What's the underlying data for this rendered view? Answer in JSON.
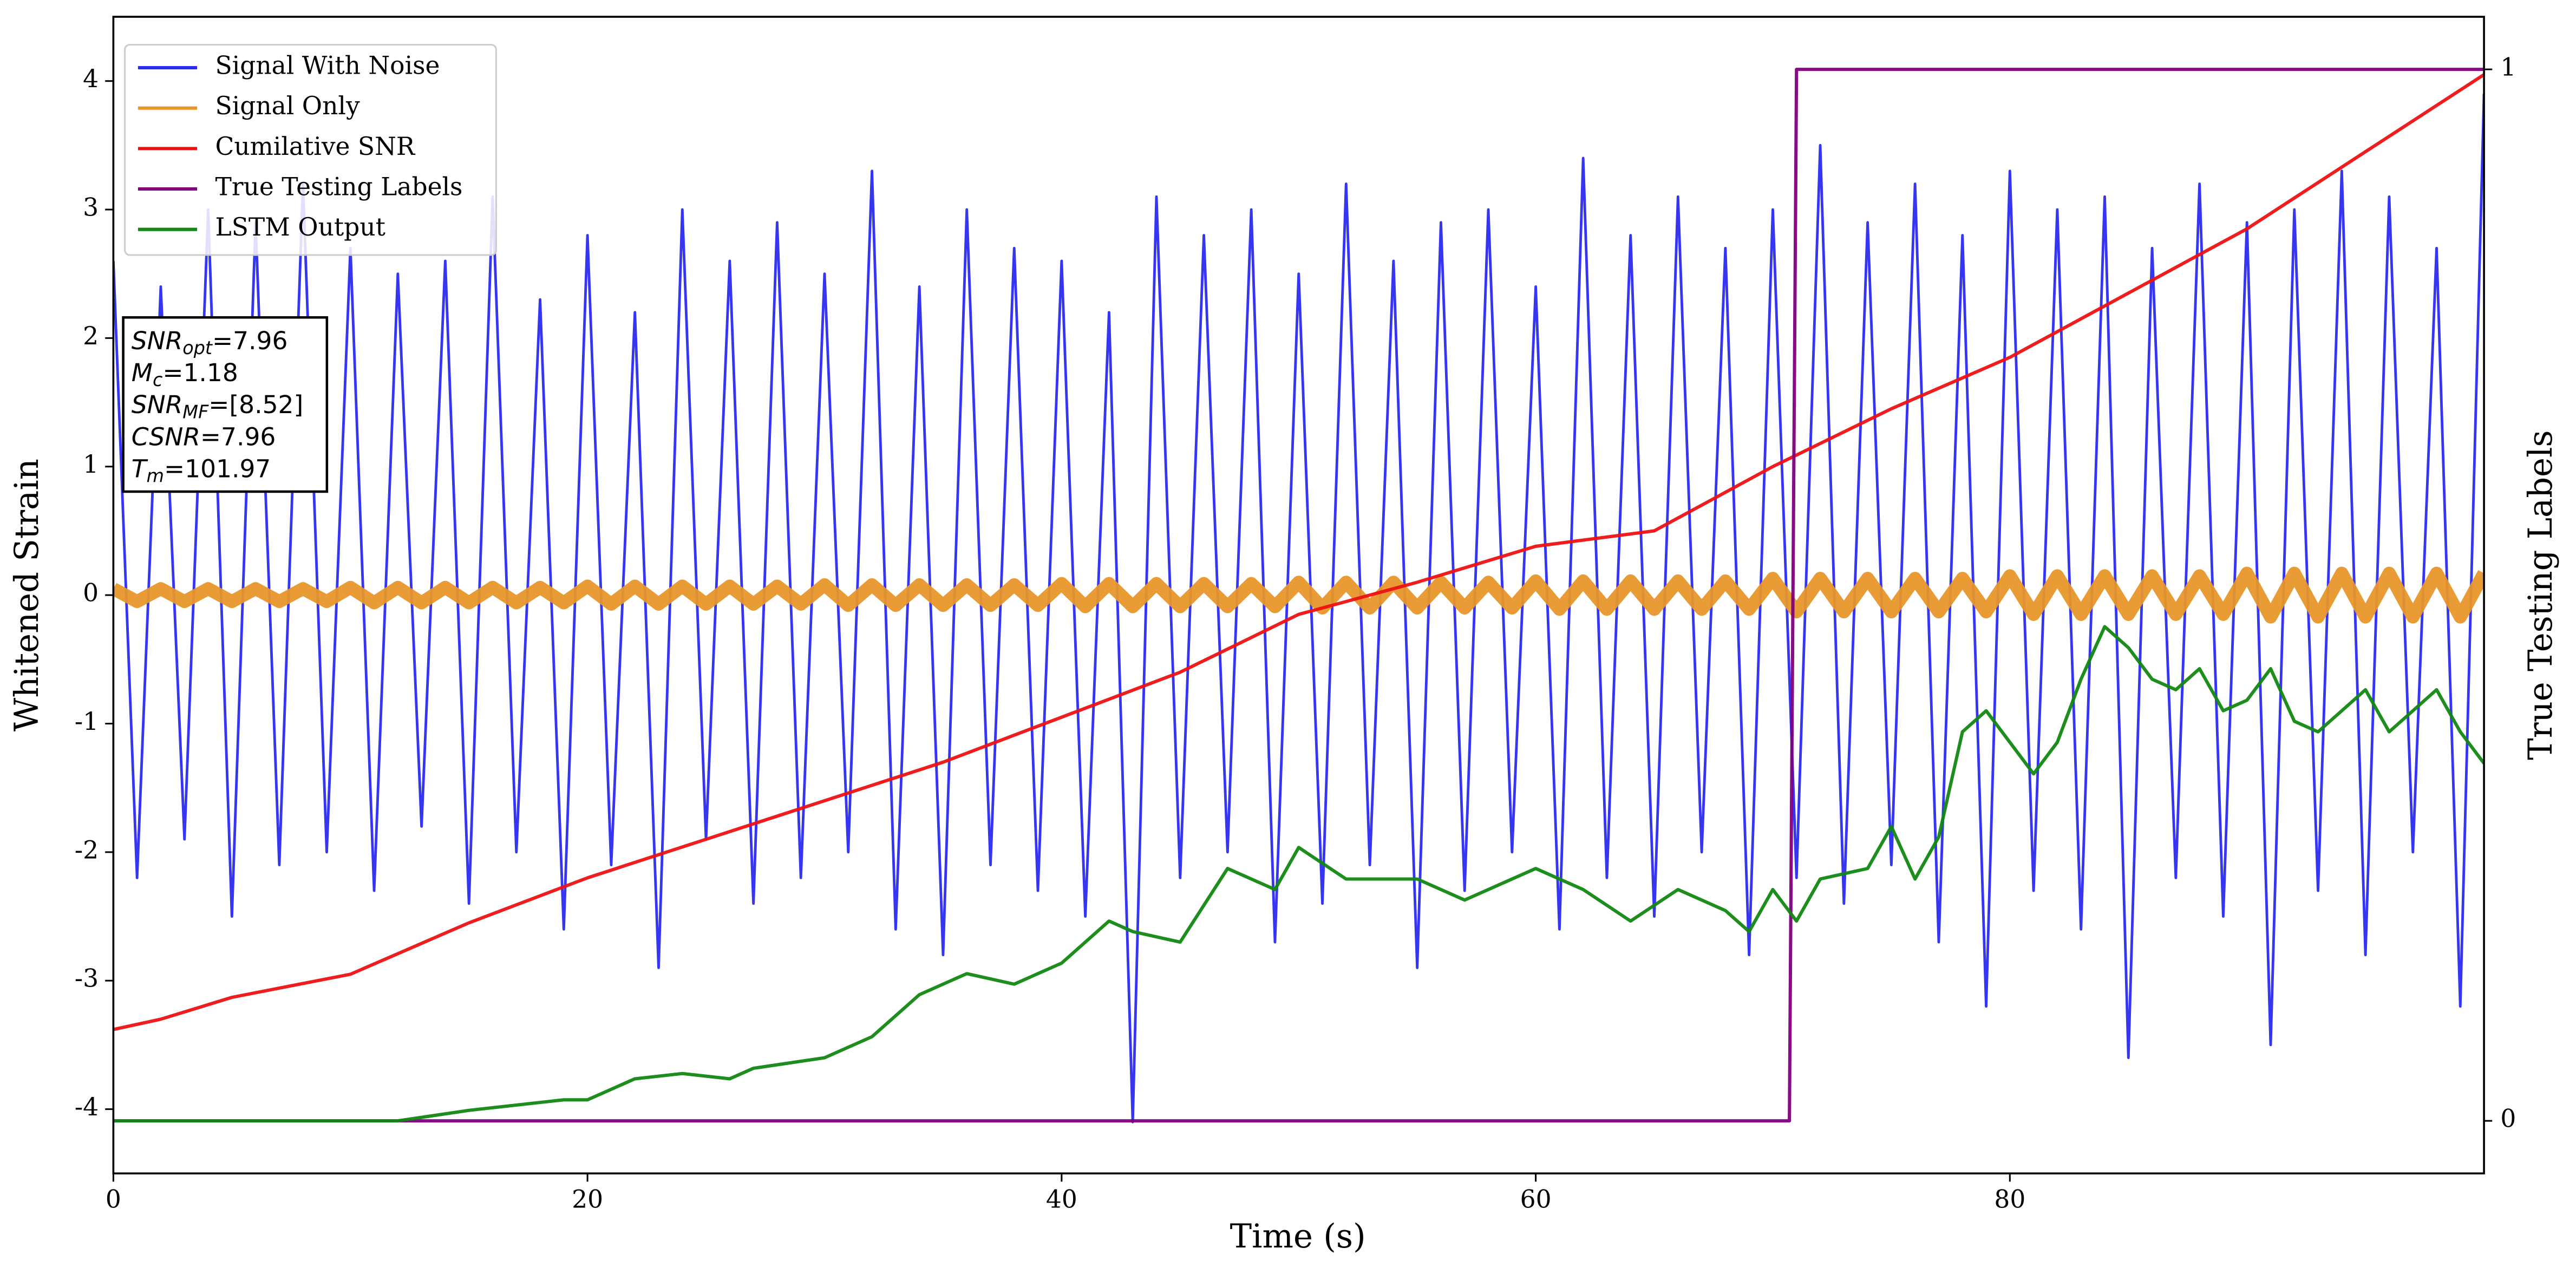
{
  "chart_data": {
    "type": "line",
    "xlabel": "Time (s)",
    "ylabel": "Whitened Strain",
    "y2label": "True Testing Labels",
    "xlim": [
      0,
      100
    ],
    "xticks": [
      0,
      20,
      40,
      60,
      80
    ],
    "ylim": [
      -4.5,
      4.5
    ],
    "yticks": [
      -4,
      -3,
      -2,
      -1,
      0,
      1,
      2,
      3,
      4
    ],
    "y2lim": [
      -0.05,
      1.05
    ],
    "y2ticks": [
      0,
      1
    ],
    "legend": "upper left",
    "series": [
      {
        "name": "Signal With Noise",
        "color": "#2b2bf0",
        "width": 1.6,
        "x": [
          0,
          1,
          2,
          3,
          4,
          5,
          6,
          7,
          8,
          9,
          10,
          11,
          12,
          13,
          14,
          15,
          16,
          17,
          18,
          19,
          20,
          21,
          22,
          23,
          24,
          25,
          26,
          27,
          28,
          29,
          30,
          31,
          32,
          33,
          34,
          35,
          36,
          37,
          38,
          39,
          40,
          41,
          42,
          43,
          44,
          45,
          46,
          47,
          48,
          49,
          50,
          51,
          52,
          53,
          54,
          55,
          56,
          57,
          58,
          59,
          60,
          61,
          62,
          63,
          64,
          65,
          66,
          67,
          68,
          69,
          70,
          71,
          72,
          73,
          74,
          75,
          76,
          77,
          78,
          79,
          80,
          81,
          82,
          83,
          84,
          85,
          86,
          87,
          88,
          89,
          90,
          91,
          92,
          93,
          94,
          95,
          96,
          97,
          98,
          99,
          100
        ],
        "values": [
          2.6,
          -2.2,
          2.4,
          -1.9,
          3.0,
          -2.5,
          2.9,
          -2.1,
          3.2,
          -2.0,
          2.7,
          -2.3,
          2.5,
          -1.8,
          2.6,
          -2.4,
          3.1,
          -2.0,
          2.3,
          -2.6,
          2.8,
          -2.1,
          2.2,
          -2.9,
          3.0,
          -1.9,
          2.6,
          -2.4,
          2.9,
          -2.2,
          2.5,
          -2.0,
          3.3,
          -2.6,
          2.4,
          -2.8,
          3.0,
          -2.1,
          2.7,
          -2.3,
          2.6,
          -2.5,
          2.2,
          -4.1,
          3.1,
          -2.2,
          2.8,
          -2.0,
          3.0,
          -2.7,
          2.5,
          -2.4,
          3.2,
          -2.1,
          2.6,
          -2.9,
          2.9,
          -2.3,
          3.0,
          -2.0,
          2.4,
          -2.6,
          3.4,
          -2.2,
          2.8,
          -2.5,
          3.1,
          -2.0,
          2.7,
          -2.8,
          3.0,
          -2.2,
          3.5,
          -2.4,
          2.9,
          -2.1,
          3.2,
          -2.7,
          2.8,
          -3.2,
          3.3,
          -2.3,
          3.0,
          -2.6,
          3.1,
          -3.6,
          2.7,
          -2.2,
          3.2,
          -2.5,
          2.9,
          -3.5,
          3.0,
          -2.3,
          3.3,
          -2.8,
          3.1,
          -2.0,
          2.7,
          -3.2,
          3.9
        ]
      },
      {
        "name": "Signal Only",
        "color": "#e8962a",
        "width": 8,
        "x": [
          0,
          1,
          2,
          3,
          4,
          5,
          6,
          7,
          8,
          9,
          10,
          11,
          12,
          13,
          14,
          15,
          16,
          17,
          18,
          19,
          20,
          21,
          22,
          23,
          24,
          25,
          26,
          27,
          28,
          29,
          30,
          31,
          32,
          33,
          34,
          35,
          36,
          37,
          38,
          39,
          40,
          41,
          42,
          43,
          44,
          45,
          46,
          47,
          48,
          49,
          50,
          51,
          52,
          53,
          54,
          55,
          56,
          57,
          58,
          59,
          60,
          61,
          62,
          63,
          64,
          65,
          66,
          67,
          68,
          69,
          70,
          71,
          72,
          73,
          74,
          75,
          76,
          77,
          78,
          79,
          80,
          81,
          82,
          83,
          84,
          85,
          86,
          87,
          88,
          89,
          90,
          91,
          92,
          93,
          94,
          95,
          96,
          97,
          98,
          99,
          100
        ],
        "values": [
          0.05,
          -0.05,
          0.05,
          -0.05,
          0.05,
          -0.05,
          0.05,
          -0.05,
          0.05,
          -0.05,
          0.06,
          -0.06,
          0.06,
          -0.06,
          0.06,
          -0.06,
          0.06,
          -0.06,
          0.06,
          -0.06,
          0.07,
          -0.07,
          0.07,
          -0.07,
          0.07,
          -0.07,
          0.07,
          -0.07,
          0.07,
          -0.07,
          0.08,
          -0.08,
          0.08,
          -0.08,
          0.08,
          -0.08,
          0.08,
          -0.08,
          0.08,
          -0.08,
          0.09,
          -0.09,
          0.09,
          -0.09,
          0.09,
          -0.09,
          0.09,
          -0.09,
          0.09,
          -0.09,
          0.1,
          -0.1,
          0.1,
          -0.1,
          0.1,
          -0.1,
          0.1,
          -0.1,
          0.1,
          -0.1,
          0.11,
          -0.11,
          0.11,
          -0.11,
          0.11,
          -0.11,
          0.11,
          -0.11,
          0.11,
          -0.11,
          0.13,
          -0.13,
          0.13,
          -0.13,
          0.13,
          -0.13,
          0.13,
          -0.13,
          0.13,
          -0.13,
          0.15,
          -0.15,
          0.15,
          -0.15,
          0.15,
          -0.15,
          0.15,
          -0.15,
          0.15,
          -0.15,
          0.17,
          -0.17,
          0.17,
          -0.17,
          0.17,
          -0.17,
          0.17,
          -0.17,
          0.17,
          -0.17,
          0.17
        ]
      },
      {
        "name": "Cumilative SNR",
        "color": "#ee1111",
        "width": 2,
        "x": [
          0,
          2,
          5,
          10,
          15,
          20,
          25,
          30,
          35,
          40,
          45,
          50,
          55,
          60,
          65,
          70,
          75,
          80,
          85,
          90,
          95,
          100
        ],
        "values": [
          -3.38,
          -3.3,
          -3.13,
          -2.95,
          -2.55,
          -2.2,
          -1.9,
          -1.6,
          -1.3,
          -0.95,
          -0.6,
          -0.15,
          0.1,
          0.38,
          0.5,
          1.0,
          1.45,
          1.85,
          2.35,
          2.85,
          3.45,
          4.05
        ]
      },
      {
        "name": "True Testing Labels",
        "color": "#800080",
        "width": 2,
        "axis": "y2",
        "x": [
          0,
          70.7,
          71,
          100
        ],
        "values": [
          0,
          0,
          1,
          1
        ]
      },
      {
        "name": "LSTM Output",
        "color": "#118811",
        "width": 2,
        "axis": "y2",
        "x": [
          0,
          12,
          15,
          19,
          20,
          22,
          24,
          26,
          27,
          30,
          32,
          34,
          36,
          38,
          40,
          42,
          43,
          45,
          47,
          49,
          50,
          52,
          55,
          57,
          60,
          62,
          64,
          66,
          68,
          69,
          70,
          71,
          72,
          74,
          75,
          76,
          77,
          78,
          79,
          80,
          81,
          82,
          83,
          84,
          85,
          86,
          87,
          88,
          89,
          90,
          91,
          92,
          93,
          94,
          95,
          96,
          97,
          98,
          99,
          100
        ],
        "values": [
          0,
          0,
          0.01,
          0.02,
          0.02,
          0.04,
          0.045,
          0.04,
          0.05,
          0.06,
          0.08,
          0.12,
          0.14,
          0.13,
          0.15,
          0.19,
          0.18,
          0.17,
          0.24,
          0.22,
          0.26,
          0.23,
          0.23,
          0.21,
          0.24,
          0.22,
          0.19,
          0.22,
          0.2,
          0.18,
          0.22,
          0.19,
          0.23,
          0.24,
          0.28,
          0.23,
          0.27,
          0.37,
          0.39,
          0.36,
          0.33,
          0.36,
          0.42,
          0.47,
          0.45,
          0.42,
          0.41,
          0.43,
          0.39,
          0.4,
          0.43,
          0.38,
          0.37,
          0.39,
          0.41,
          0.37,
          0.39,
          0.41,
          0.37,
          0.34
        ]
      }
    ],
    "annotation": [
      {
        "symbol": "SNR",
        "sub": "opt",
        "text": "=7.96"
      },
      {
        "symbol": "M",
        "sub": "c",
        "text": "=1.18"
      },
      {
        "symbol": "SNR",
        "sub": "MF",
        "text": "=[8.52]"
      },
      {
        "symbol": "CSNR",
        "text": "=7.96"
      },
      {
        "symbol": "T",
        "sub": "m",
        "text": "=101.97"
      }
    ]
  }
}
